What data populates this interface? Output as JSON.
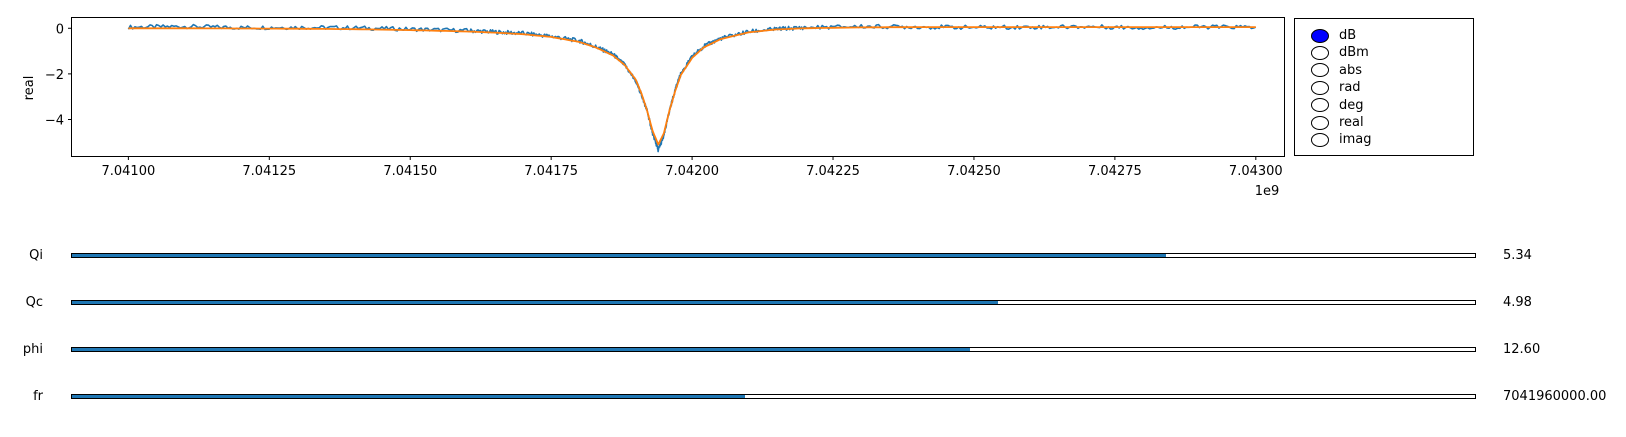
{
  "chart_data": {
    "type": "line",
    "title": "",
    "xlabel": "",
    "ylabel": "real",
    "x_offset_label": "1e9",
    "xlim": [
      7.0409,
      7.04305
    ],
    "ylim": [
      -5.6,
      0.45
    ],
    "xticks": [
      "7.04100",
      "7.04125",
      "7.04150",
      "7.04175",
      "7.04200",
      "7.04225",
      "7.04250",
      "7.04275",
      "7.04300"
    ],
    "yticks": [
      "0",
      "−2",
      "−4"
    ],
    "grid": false,
    "series": [
      {
        "color": "#1f77b4",
        "x": [
          7.041,
          7.0411,
          7.0412,
          7.0413,
          7.0414,
          7.0415,
          7.0416,
          7.04165,
          7.0417,
          7.04175,
          7.0418,
          7.04183,
          7.04186,
          7.04188,
          7.0419,
          7.04191,
          7.04192,
          7.04193,
          7.04194,
          7.04195,
          7.04196,
          7.04197,
          7.04198,
          7.042,
          7.04202,
          7.04205,
          7.0421,
          7.04215,
          7.0422,
          7.0423,
          7.0424,
          7.0425,
          7.0426,
          7.0427,
          7.0428,
          7.0429,
          7.043
        ],
        "y": [
          0.05,
          0.08,
          0.03,
          0.04,
          0.02,
          -0.04,
          -0.1,
          -0.16,
          -0.22,
          -0.35,
          -0.55,
          -0.82,
          -1.15,
          -1.6,
          -2.3,
          -2.9,
          -3.6,
          -4.6,
          -5.35,
          -4.7,
          -3.6,
          -2.7,
          -2.0,
          -1.25,
          -0.8,
          -0.45,
          -0.15,
          -0.03,
          0.03,
          0.08,
          0.06,
          0.04,
          0.05,
          0.07,
          0.03,
          0.06,
          0.05
        ]
      },
      {
        "color": "#ff7f0e",
        "x": [
          7.041,
          7.0411,
          7.0412,
          7.0413,
          7.0414,
          7.0415,
          7.0416,
          7.04165,
          7.0417,
          7.04175,
          7.0418,
          7.04183,
          7.04186,
          7.04188,
          7.0419,
          7.04191,
          7.04192,
          7.04193,
          7.04194,
          7.04195,
          7.04196,
          7.04197,
          7.04198,
          7.042,
          7.04202,
          7.04205,
          7.0421,
          7.04215,
          7.0422,
          7.0423,
          7.0424,
          7.0425,
          7.0426,
          7.0427,
          7.0428,
          7.0429,
          7.043
        ],
        "y": [
          0.0,
          0.0,
          -0.01,
          -0.02,
          -0.04,
          -0.08,
          -0.14,
          -0.19,
          -0.26,
          -0.38,
          -0.6,
          -0.85,
          -1.2,
          -1.6,
          -2.25,
          -2.85,
          -3.6,
          -4.5,
          -5.1,
          -4.6,
          -3.6,
          -2.75,
          -2.05,
          -1.3,
          -0.85,
          -0.48,
          -0.18,
          -0.05,
          0.0,
          0.04,
          0.05,
          0.05,
          0.05,
          0.05,
          0.05,
          0.05,
          0.05
        ]
      }
    ]
  },
  "radio_group": {
    "selected": "dB",
    "options": [
      "dB",
      "dBm",
      "abs",
      "rad",
      "deg",
      "real",
      "imag"
    ]
  },
  "sliders": [
    {
      "name": "qi",
      "label": "Qi",
      "value_text": "5.34",
      "fraction": 0.78
    },
    {
      "name": "qc",
      "label": "Qc",
      "value_text": "4.98",
      "fraction": 0.66
    },
    {
      "name": "phi",
      "label": "phi",
      "value_text": "12.60",
      "fraction": 0.64
    },
    {
      "name": "fr",
      "label": "fr",
      "value_text": "7041960000.00",
      "fraction": 0.48
    }
  ],
  "colors": {
    "accent": "#1f77b4",
    "fit": "#ff7f0e",
    "radio_selected": "#0000ff"
  }
}
